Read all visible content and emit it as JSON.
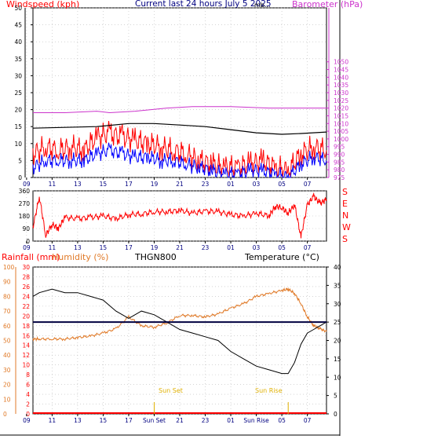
{
  "colors": {
    "wind_speed": "#ff0000",
    "wind_avg": "#0000ff",
    "barometer": "#cc33cc",
    "temperature": "#000000",
    "humidity": "#e07a28",
    "rainfall": "#ff0000",
    "axis": "#000000",
    "grid": "#bbbbbb",
    "frame": "#000000",
    "time_label": "#000080",
    "sun_label": "#e0b000",
    "dew_line": "#000040"
  },
  "header": {
    "left_title": "Windspeed (kph)",
    "center_title": "Current last 24 hours July 5 2025",
    "center_suffix": "mb...",
    "right_title": "Barometer (hPa)"
  },
  "panel3_header": {
    "rainfall_label": "Rainfall (mm)",
    "humidity_label": "Humidity (%)",
    "sensor_label": "THGN800",
    "temperature_label": "Temperature (°C)"
  },
  "compass_labels": [
    "S",
    "E",
    "N",
    "W",
    "S"
  ],
  "sun_events": {
    "sunset": "Sun Set",
    "sunrise": "Sun Rise"
  },
  "chart_data": [
    {
      "type": "line",
      "id": "wind-barometer",
      "title": "Current last 24 hours July 5 2025",
      "x_ticks": [
        "11",
        "13",
        "15",
        "17",
        "19",
        "21",
        "23",
        "01",
        "03",
        "05",
        "07",
        "09"
      ],
      "y_left_label": "Windspeed (kph)",
      "y_left_ticks": [
        0,
        5,
        10,
        15,
        20,
        25,
        30,
        35,
        40,
        45,
        50
      ],
      "y_left_lim": [
        0,
        50
      ],
      "y_right_label": "Barometer (hPa)",
      "y_right_ticks": [
        975,
        980,
        985,
        990,
        995,
        1000,
        1005,
        1010,
        1015,
        1020,
        1025,
        1030,
        1035,
        1040,
        1045,
        1050
      ],
      "y_right_lim": [
        975,
        1085
      ],
      "grid": true,
      "series": [
        {
          "name": "Windspeed (kph)",
          "hours": [
            9.5,
            10.5,
            11.5,
            12.5,
            13.5,
            14.5,
            15.5,
            16.5,
            17.5,
            18.5,
            19.5,
            20.5,
            21.5,
            22.5,
            23.5,
            24.5,
            25.5,
            26.5,
            27.5,
            28.5,
            29.5,
            30.5,
            31.5,
            32.5
          ],
          "values": [
            7,
            9,
            8,
            9,
            8,
            12,
            13,
            12,
            11,
            10,
            9,
            8,
            7,
            5,
            4,
            3,
            3,
            4,
            5,
            3,
            2,
            7,
            9,
            8
          ]
        },
        {
          "name": "Average wind",
          "hours": [
            9.5,
            10.5,
            11.5,
            12.5,
            13.5,
            14.5,
            15.5,
            16.5,
            17.5,
            18.5,
            19.5,
            20.5,
            21.5,
            22.5,
            23.5,
            24.5,
            25.5,
            26.5,
            27.5,
            28.5,
            29.5,
            30.5,
            31.5,
            32.5
          ],
          "values": [
            3,
            5,
            5,
            5,
            5,
            7,
            8,
            7,
            6,
            6,
            5,
            5,
            4,
            3,
            2,
            1,
            1,
            2,
            2,
            1,
            0,
            4,
            6,
            5
          ]
        },
        {
          "name": "Barometer (hPa)",
          "hours": [
            9.5,
            12,
            14.5,
            15.5,
            17.5,
            20,
            22,
            25,
            28,
            30,
            31,
            32.5
          ],
          "values": [
            1017,
            1017,
            1018,
            1017,
            1018,
            1020,
            1021,
            1021,
            1020,
            1020,
            1020,
            1020
          ]
        },
        {
          "name": "Temperature",
          "hours": [
            9.5,
            12,
            14.5,
            17,
            19,
            21,
            23,
            25,
            27,
            29,
            30.5,
            32.5
          ],
          "values": [
            1007,
            1007.5,
            1008,
            1010,
            1010,
            1009,
            1008,
            1006,
            1004,
            1003,
            1003.5,
            1004.5
          ]
        }
      ]
    },
    {
      "type": "line",
      "id": "wind-direction",
      "x_ticks": [
        "11",
        "13",
        "15",
        "17",
        "19",
        "21",
        "23",
        "01",
        "03",
        "05",
        "07",
        "09"
      ],
      "y_ticks": [
        0,
        90,
        180,
        270,
        360
      ],
      "y_lim": [
        0,
        360
      ],
      "grid": true,
      "series": [
        {
          "name": "Wind direction",
          "hours": [
            9.5,
            10,
            10.5,
            11,
            11.5,
            12,
            13,
            14,
            15,
            16,
            17,
            18,
            19,
            20,
            21,
            22,
            23,
            24,
            25,
            26,
            27,
            28,
            28.5,
            29,
            29.5,
            30,
            30.5,
            31,
            31.5,
            32,
            32.5
          ],
          "values": [
            100,
            320,
            40,
            120,
            90,
            170,
            160,
            170,
            180,
            160,
            190,
            195,
            210,
            210,
            220,
            200,
            215,
            210,
            190,
            180,
            200,
            180,
            250,
            240,
            200,
            260,
            30,
            260,
            320,
            270,
            300
          ]
        }
      ]
    },
    {
      "type": "line",
      "id": "temp-humidity",
      "x_ticks": [
        "11",
        "13",
        "15",
        "17",
        "19",
        "21",
        "23",
        "01",
        "03",
        "05",
        "07",
        "09"
      ],
      "y_rain_ticks": [
        0,
        2,
        4,
        6,
        8,
        10,
        12,
        14,
        16,
        18,
        20,
        22,
        24,
        26,
        28,
        30
      ],
      "y_rain_lim": [
        0,
        30
      ],
      "y_humidity_ticks": [
        0,
        10,
        20,
        30,
        40,
        50,
        60,
        70,
        80,
        90,
        100
      ],
      "y_humidity_lim": [
        0,
        100
      ],
      "y_temp_ticks": [
        0,
        5,
        10,
        15,
        20,
        25,
        30,
        35,
        40
      ],
      "y_temp_lim": [
        0,
        40
      ],
      "grid": true,
      "series": [
        {
          "name": "Temperature (°C)",
          "hours": [
            9.5,
            10,
            11,
            12,
            13,
            14,
            15,
            16,
            17,
            18,
            19,
            20,
            21,
            22,
            23,
            24,
            25,
            26,
            27,
            28,
            29,
            29.5,
            30,
            30.5,
            31,
            31.5,
            32,
            32.5
          ],
          "values": [
            32,
            33,
            34,
            33,
            33,
            32,
            31,
            28,
            26,
            28,
            27,
            25,
            23,
            22,
            21,
            20,
            17,
            15,
            13,
            12,
            11,
            11,
            14,
            19,
            22,
            23,
            24,
            25
          ]
        },
        {
          "name": "Humidity (%)",
          "hours": [
            9.5,
            10,
            11,
            12,
            13,
            14,
            15,
            16,
            17,
            18,
            19,
            20,
            21,
            22,
            23,
            24,
            25,
            26,
            27,
            28,
            29,
            29.5,
            30,
            30.5,
            31,
            31.5,
            32,
            32.5
          ],
          "values": [
            51,
            51,
            51,
            51,
            52,
            53,
            55,
            58,
            66,
            60,
            59,
            62,
            67,
            67,
            66,
            68,
            72,
            75,
            80,
            82,
            84,
            85,
            82,
            75,
            66,
            60,
            58,
            56
          ]
        },
        {
          "name": "Rainfall (mm)",
          "hours": [
            9.5,
            32.5
          ],
          "values": [
            0,
            0
          ]
        },
        {
          "name": "Dew level",
          "hours": [
            9.5,
            32.5
          ],
          "values": [
            25,
            25
          ]
        }
      ]
    }
  ]
}
